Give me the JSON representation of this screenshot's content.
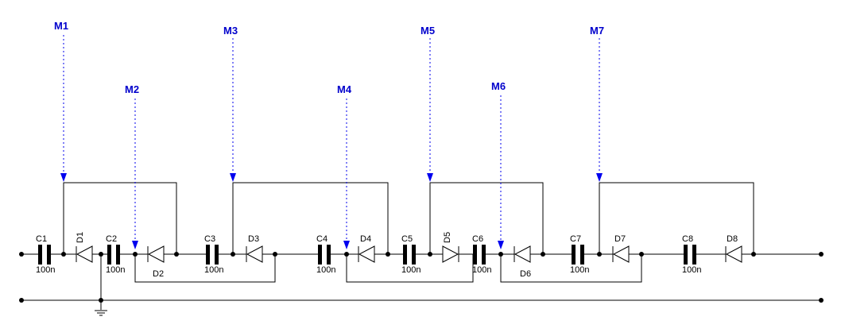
{
  "probes": [
    {
      "id": "M1",
      "label": "M1"
    },
    {
      "id": "M2",
      "label": "M2"
    },
    {
      "id": "M3",
      "label": "M3"
    },
    {
      "id": "M4",
      "label": "M4"
    },
    {
      "id": "M5",
      "label": "M5"
    },
    {
      "id": "M6",
      "label": "M6"
    },
    {
      "id": "M7",
      "label": "M7"
    }
  ],
  "capacitors": [
    {
      "name": "C1",
      "value": "100n"
    },
    {
      "name": "C2",
      "value": "100n"
    },
    {
      "name": "C3",
      "value": "100n"
    },
    {
      "name": "C4",
      "value": "100n"
    },
    {
      "name": "C5",
      "value": "100n"
    },
    {
      "name": "C6",
      "value": "100n"
    },
    {
      "name": "C7",
      "value": "100n"
    },
    {
      "name": "C8",
      "value": "100n"
    }
  ],
  "diodes": [
    {
      "name": "D1"
    },
    {
      "name": "D2"
    },
    {
      "name": "D3"
    },
    {
      "name": "D4"
    },
    {
      "name": "D5"
    },
    {
      "name": "D6"
    },
    {
      "name": "D7"
    },
    {
      "name": "D8"
    }
  ],
  "colors": {
    "probe": "#0000cc",
    "wire": "#000000"
  }
}
